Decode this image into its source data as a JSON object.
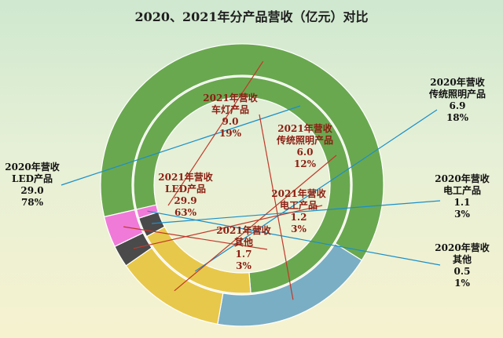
{
  "title": "2020、2021年分产品营收（亿元）对比",
  "colors": {
    "led": "#6aa84f",
    "car_lamp": "#7aaec4",
    "traditional": "#e8c84a",
    "electrical": "#4a4a4a",
    "other": "#f07ad8",
    "inner_text": "#8b1e12",
    "outer_text": "#111111",
    "leader_outer": "#1a8fc9",
    "leader_inner": "#c0392b"
  },
  "chart_data": {
    "type": "doughnut",
    "title": "2020、2021年分产品营收（亿元）对比",
    "rings": [
      {
        "name": "2021年营收",
        "position": "outer",
        "series": [
          {
            "category": "LED产品",
            "value": 29.9,
            "percent": "63%"
          },
          {
            "category": "车灯产品",
            "value": 9.0,
            "percent": "19%"
          },
          {
            "category": "传统照明产品",
            "value": 6.0,
            "percent": "12%"
          },
          {
            "category": "电工产品",
            "value": 1.2,
            "percent": "3%"
          },
          {
            "category": "其他",
            "value": 1.7,
            "percent": "3%"
          }
        ]
      },
      {
        "name": "2020年营收",
        "position": "inner",
        "series": [
          {
            "category": "LED产品",
            "value": 29.0,
            "percent": "78%"
          },
          {
            "category": "传统照明产品",
            "value": 6.9,
            "percent": "18%"
          },
          {
            "category": "电工产品",
            "value": 1.1,
            "percent": "3%"
          },
          {
            "category": "其他",
            "value": 0.5,
            "percent": "1%"
          }
        ]
      }
    ]
  },
  "labels": {
    "y2020_led": {
      "year": "2020年营收",
      "name": "LED产品",
      "value": "29.0",
      "pct": "78%"
    },
    "y2020_trad": {
      "year": "2020年营收",
      "name": "传统照明产品",
      "value": "6.9",
      "pct": "18%"
    },
    "y2020_elec": {
      "year": "2020年营收",
      "name": "电工产品",
      "value": "1.1",
      "pct": "3%"
    },
    "y2020_other": {
      "year": "2020年营收",
      "name": "其他",
      "value": "0.5",
      "pct": "1%"
    },
    "y2021_car": {
      "year": "2021年营收",
      "name": "车灯产品",
      "value": "9.0",
      "pct": "19%"
    },
    "y2021_trad": {
      "year": "2021年营收",
      "name": "传统照明产品",
      "value": "6.0",
      "pct": "12%"
    },
    "y2021_led": {
      "year": "2021年营收",
      "name": "LED产品",
      "value": "29.9",
      "pct": "63%"
    },
    "y2021_elec": {
      "year": "2021年营收",
      "name": "电工产品",
      "value": "1.2",
      "pct": "3%"
    },
    "y2021_other": {
      "year": "2021年营收",
      "name": "其他",
      "value": "1.7",
      "pct": "3%"
    }
  }
}
